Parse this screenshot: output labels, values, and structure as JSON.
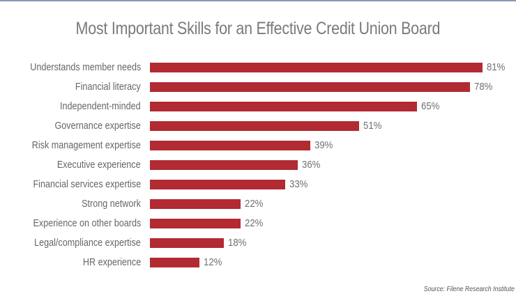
{
  "chart_data": {
    "type": "bar",
    "orientation": "horizontal",
    "title": "Most Important Skills for an Effective Credit Union Board",
    "xlabel": "",
    "ylabel": "",
    "xlim": [
      0,
      100
    ],
    "grid": false,
    "legend": null,
    "value_suffix": "%",
    "bar_color": "#b22a32",
    "categories": [
      "Understands member needs",
      "Financial literacy",
      "Independent-minded",
      "Governance expertise",
      "Risk management expertise",
      "Executive experience",
      "Financial services expertise",
      "Strong network",
      "Experience on other boards",
      "Legal/compliance expertise",
      "HR experience"
    ],
    "values": [
      81,
      78,
      65,
      51,
      39,
      36,
      33,
      22,
      22,
      18,
      12
    ],
    "value_labels": [
      "81%",
      "78%",
      "65%",
      "51%",
      "39%",
      "36%",
      "33%",
      "22%",
      "22%",
      "18%",
      "12%"
    ],
    "source": "Source: Filene Research Institute"
  },
  "colors": {
    "bar": "#b22a32",
    "title": "#7a7a7a",
    "label": "#666666",
    "top_border": "#8d95b5"
  }
}
